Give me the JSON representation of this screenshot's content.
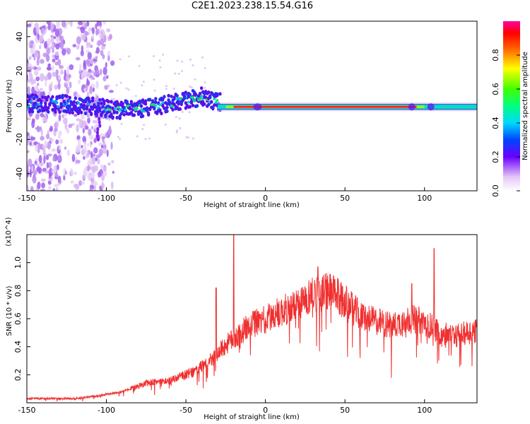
{
  "title": "C2E1.2023.238.15.54.G16",
  "chart_data": [
    {
      "type": "heatmap",
      "title": "C2E1.2023.238.15.54.G16",
      "xlabel": "Height of straight line (km)",
      "ylabel": "Frequency (Hz)",
      "xlim": [
        -150,
        133
      ],
      "ylim": [
        -50,
        49
      ],
      "x_ticks": [
        -150,
        -100,
        -50,
        0,
        50,
        100
      ],
      "y_ticks": [
        -40,
        -20,
        0,
        20,
        40
      ],
      "colorbar": {
        "label": "Normalized spectral amplitude",
        "range": [
          0,
          1
        ],
        "ticks": [
          0.0,
          0.2,
          0.4,
          0.6,
          0.8
        ]
      },
      "ridge": [
        {
          "x": -148,
          "y": 1
        },
        {
          "x": -130,
          "y": 1
        },
        {
          "x": -115,
          "y": 0
        },
        {
          "x": -105,
          "y": -1
        },
        {
          "x": -95,
          "y": -3
        },
        {
          "x": -80,
          "y": -2
        },
        {
          "x": -65,
          "y": 0
        },
        {
          "x": -50,
          "y": 3
        },
        {
          "x": -40,
          "y": 5
        },
        {
          "x": -30,
          "y": 2
        },
        {
          "x": -20,
          "y": 0
        },
        {
          "x": 0,
          "y": -1
        },
        {
          "x": 50,
          "y": -1
        },
        {
          "x": 90,
          "y": -1
        },
        {
          "x": 110,
          "y": -1
        },
        {
          "x": 133,
          "y": -1
        }
      ],
      "grid": false,
      "colormap": "rainbow"
    },
    {
      "type": "line",
      "xlabel": "Height of straight line (km)",
      "ylabel": "SNR (10 * v/v)",
      "y_multiplier_label": "(x10^4)",
      "xlim": [
        -150,
        133
      ],
      "ylim": [
        0,
        1.2
      ],
      "x_ticks": [
        -150,
        -100,
        -50,
        0,
        50,
        100
      ],
      "y_ticks": [
        0.2,
        0.4,
        0.6,
        0.8,
        1.0
      ],
      "series": [
        {
          "color": "#f03030",
          "envelope": [
            {
              "x": -150,
              "y": 0.03
            },
            {
              "x": -120,
              "y": 0.03
            },
            {
              "x": -105,
              "y": 0.05
            },
            {
              "x": -90,
              "y": 0.08
            },
            {
              "x": -75,
              "y": 0.14
            },
            {
              "x": -60,
              "y": 0.16
            },
            {
              "x": -45,
              "y": 0.22
            },
            {
              "x": -35,
              "y": 0.3
            },
            {
              "x": -28,
              "y": 0.38
            },
            {
              "x": -20,
              "y": 0.46
            },
            {
              "x": -10,
              "y": 0.55
            },
            {
              "x": 0,
              "y": 0.6
            },
            {
              "x": 10,
              "y": 0.65
            },
            {
              "x": 20,
              "y": 0.7
            },
            {
              "x": 30,
              "y": 0.78
            },
            {
              "x": 40,
              "y": 0.8
            },
            {
              "x": 50,
              "y": 0.72
            },
            {
              "x": 60,
              "y": 0.62
            },
            {
              "x": 70,
              "y": 0.58
            },
            {
              "x": 80,
              "y": 0.55
            },
            {
              "x": 90,
              "y": 0.6
            },
            {
              "x": 100,
              "y": 0.58
            },
            {
              "x": 110,
              "y": 0.5
            },
            {
              "x": 120,
              "y": 0.48
            },
            {
              "x": 133,
              "y": 0.52
            }
          ],
          "spikes": [
            {
              "x": -20,
              "y": 1.2
            },
            {
              "x": 106,
              "y": 1.1
            },
            {
              "x": 33,
              "y": 0.97
            },
            {
              "x": -31,
              "y": 0.82
            },
            {
              "x": 92,
              "y": 0.85
            }
          ]
        }
      ],
      "grid": false
    }
  ]
}
